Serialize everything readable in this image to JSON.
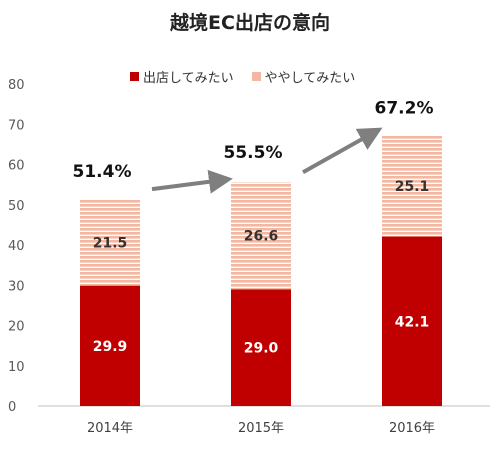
{
  "chart_data": {
    "type": "bar",
    "stacked": true,
    "title": "越境EC出店の意向",
    "categories": [
      "2014年",
      "2015年",
      "2016年"
    ],
    "series": [
      {
        "name": "出店してみたい",
        "values": [
          29.9,
          29.0,
          42.1
        ],
        "color": "#c00000"
      },
      {
        "name": "ややしてみたい",
        "values": [
          21.5,
          26.6,
          25.1
        ],
        "color": "#f3b7a2"
      }
    ],
    "value_labels": [
      [
        "29.9",
        "29.0",
        "42.1"
      ],
      [
        "21.5",
        "26.6",
        "25.1"
      ]
    ],
    "totals": [
      "51.4%",
      "55.5%",
      "67.2%"
    ],
    "ylim": [
      0,
      80
    ],
    "yticks": [
      0,
      10,
      20,
      30,
      40,
      50,
      60,
      70,
      80
    ],
    "grid": false,
    "legend_position": "top",
    "annotation_arrows": true,
    "arrow_color": "#7f7f7f"
  }
}
